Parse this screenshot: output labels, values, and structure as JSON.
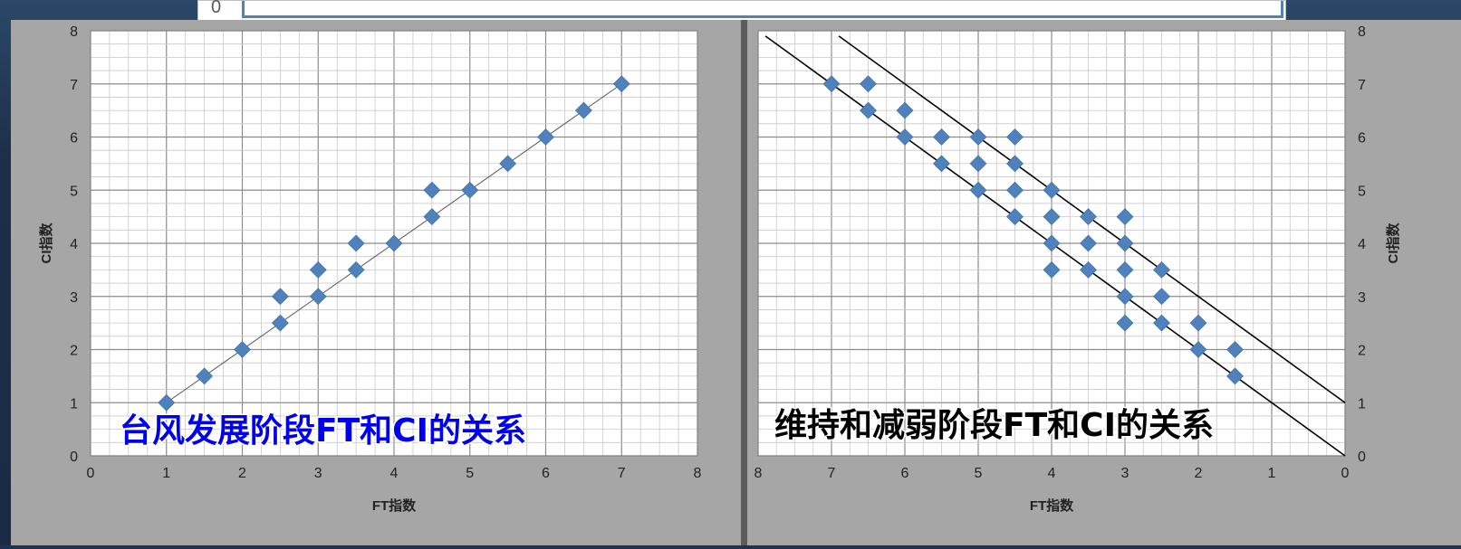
{
  "top_strip": {
    "tick_label": "0"
  },
  "chart_data": [
    {
      "type": "scatter",
      "caption": "台风发展阶段FT和CI的关系",
      "xlabel": "FT指数",
      "ylabel": "CI指数",
      "xlim": [
        0,
        8
      ],
      "ylim": [
        0,
        8
      ],
      "x_reversed": false,
      "y_axis_side": "left",
      "grid": true,
      "x_ticks": [
        "0",
        "1",
        "2",
        "3",
        "4",
        "5",
        "6",
        "7",
        "8"
      ],
      "y_ticks": [
        "0",
        "1",
        "2",
        "3",
        "4",
        "5",
        "6",
        "7",
        "8"
      ],
      "marker_color": "#4f81bd",
      "lines": [
        {
          "from": [
            1,
            1
          ],
          "to": [
            7,
            7
          ]
        }
      ],
      "points": [
        [
          1,
          1
        ],
        [
          1.5,
          1.5
        ],
        [
          2,
          2
        ],
        [
          2.5,
          2.5
        ],
        [
          2.5,
          3
        ],
        [
          3,
          3
        ],
        [
          3,
          3.5
        ],
        [
          3.5,
          3.5
        ],
        [
          3.5,
          4
        ],
        [
          4,
          4
        ],
        [
          4.5,
          4.5
        ],
        [
          4.5,
          5
        ],
        [
          5,
          5
        ],
        [
          5.5,
          5.5
        ],
        [
          6,
          6
        ],
        [
          6.5,
          6.5
        ],
        [
          7,
          7
        ]
      ]
    },
    {
      "type": "scatter",
      "caption": "维持和减弱阶段FT和CI的关系",
      "xlabel": "FT指数",
      "ylabel": "CI指数",
      "xlim": [
        0,
        8
      ],
      "ylim": [
        0,
        8
      ],
      "x_reversed": true,
      "y_axis_side": "right",
      "grid": true,
      "x_ticks": [
        "0",
        "1",
        "2",
        "3",
        "4",
        "5",
        "6",
        "7",
        "8"
      ],
      "y_ticks": [
        "0",
        "1",
        "2",
        "3",
        "4",
        "5",
        "6",
        "7",
        "8"
      ],
      "marker_color": "#4f81bd",
      "lines": [
        {
          "from": [
            7.9,
            7.9
          ],
          "to": [
            0,
            0
          ]
        },
        {
          "from": [
            6.9,
            7.9
          ],
          "to": [
            0,
            1
          ]
        }
      ],
      "points": [
        [
          7,
          7
        ],
        [
          6.5,
          7
        ],
        [
          6.5,
          6.5
        ],
        [
          6,
          6.5
        ],
        [
          6,
          6
        ],
        [
          5.5,
          6
        ],
        [
          5.5,
          5.5
        ],
        [
          5,
          6
        ],
        [
          5,
          5.5
        ],
        [
          5,
          5
        ],
        [
          4.5,
          6
        ],
        [
          4.5,
          5.5
        ],
        [
          4.5,
          5
        ],
        [
          4.5,
          4.5
        ],
        [
          4,
          5
        ],
        [
          4,
          4.5
        ],
        [
          4,
          4
        ],
        [
          4,
          3.5
        ],
        [
          3.5,
          4.5
        ],
        [
          3.5,
          4
        ],
        [
          3.5,
          3.5
        ],
        [
          3,
          4.5
        ],
        [
          3,
          4
        ],
        [
          3,
          3.5
        ],
        [
          3,
          3
        ],
        [
          3,
          2.5
        ],
        [
          2.5,
          3.5
        ],
        [
          2.5,
          3
        ],
        [
          2.5,
          2.5
        ],
        [
          2,
          2.5
        ],
        [
          2,
          2
        ],
        [
          1.5,
          2
        ],
        [
          1.5,
          1.5
        ]
      ]
    }
  ]
}
